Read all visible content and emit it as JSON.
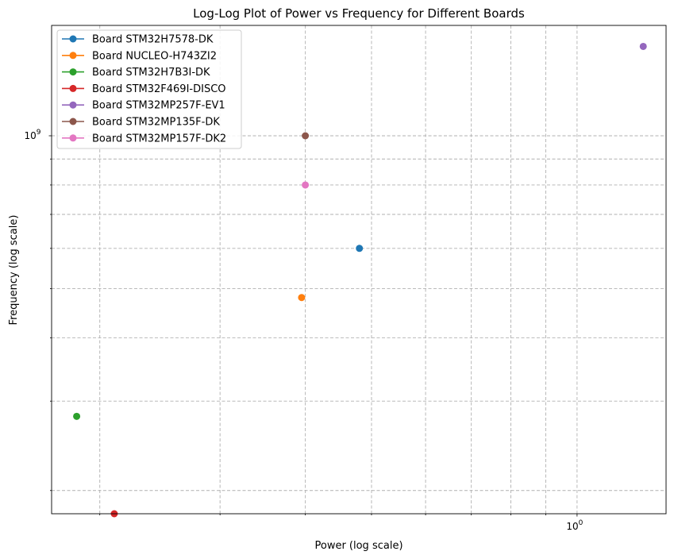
{
  "chart_data": {
    "type": "scatter",
    "title": "Log-Log Plot of Power vs Frequency for Different Boards",
    "xlabel": "Power (log scale)",
    "ylabel": "Frequency (log scale)",
    "xscale": "log",
    "yscale": "log",
    "xlim": [
      0.17,
      1.35
    ],
    "ylim": [
      180000000,
      1650000000
    ],
    "x_major_ticks": [
      {
        "value": 1.0,
        "label": "10^0",
        "base": "10",
        "exp": "0"
      }
    ],
    "x_minor_ticks": [
      0.2,
      0.3,
      0.4,
      0.5,
      0.6,
      0.7,
      0.8,
      0.9
    ],
    "y_major_ticks": [
      {
        "value": 1000000000,
        "label": "10^9",
        "base": "10",
        "exp": "9"
      }
    ],
    "y_minor_ticks": [
      200000000,
      300000000,
      400000000,
      500000000,
      600000000,
      700000000,
      800000000,
      900000000
    ],
    "grid": true,
    "legend_position": "top-left",
    "series": [
      {
        "name": "Board STM32H7578-DK",
        "color": "#1f77b4",
        "x": [
          0.48
        ],
        "y": [
          600000000
        ]
      },
      {
        "name": "Board NUCLEO-H743ZI2",
        "color": "#ff7f0e",
        "x": [
          0.395
        ],
        "y": [
          480000000
        ]
      },
      {
        "name": "Board STM32H7B3I-DK",
        "color": "#2ca02c",
        "x": [
          0.185
        ],
        "y": [
          280000000
        ]
      },
      {
        "name": "Board STM32F469I-DISCO",
        "color": "#d62728",
        "x": [
          0.21
        ],
        "y": [
          180000000
        ]
      },
      {
        "name": "Board STM32MP257F-EV1",
        "color": "#9467bd",
        "x": [
          1.25
        ],
        "y": [
          1500000000
        ]
      },
      {
        "name": "Board STM32MP135F-DK",
        "color": "#8c564b",
        "x": [
          0.4
        ],
        "y": [
          1000000000
        ]
      },
      {
        "name": "Board STM32MP157F-DK2",
        "color": "#e377c2",
        "x": [
          0.4
        ],
        "y": [
          800000000
        ]
      }
    ]
  }
}
